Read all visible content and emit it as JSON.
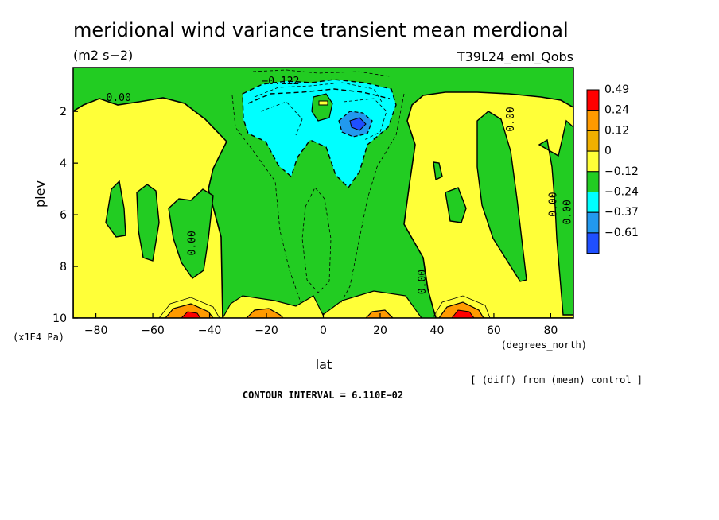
{
  "chart_data": {
    "type": "contour",
    "title": "meridional wind variance transient mean merdional",
    "units": "(m2 s−2)",
    "run_label": "T39L24_eml_Qobs",
    "xlabel": "lat",
    "xunits": "(degrees_north)",
    "ylabel": "plev",
    "yunits": "(x1E4 Pa)",
    "xlim": [
      -88,
      88
    ],
    "ylim": [
      10,
      0.3
    ],
    "x_ticks": [
      -80,
      -60,
      -40,
      -20,
      0,
      20,
      40,
      60,
      80
    ],
    "x_tick_labels": [
      "−80",
      "−60",
      "−40",
      "−20",
      "0",
      "20",
      "40",
      "60",
      "80"
    ],
    "y_ticks": [
      2,
      4,
      6,
      8,
      10
    ],
    "y_tick_labels": [
      "2",
      "4",
      "6",
      "8",
      "10"
    ],
    "colorbar": {
      "levels": [
        "0.49",
        "0.24",
        "0.12",
        "0",
        "−0.12",
        "−0.24",
        "−0.37",
        "−0.61"
      ],
      "colors": [
        "#ff0000",
        "#ff9a00",
        "#f0b000",
        "#ffff38",
        "#22cc22",
        "#00ffff",
        "#2299ee",
        "#1f4fff"
      ]
    },
    "contour_labels": [
      {
        "text": "0.00",
        "lat": -72,
        "plev": 1.6
      },
      {
        "text": "−0.122",
        "lat": -15,
        "plev": 0.95
      },
      {
        "text": "0.00",
        "lat": 67,
        "plev": 2.3
      },
      {
        "text": "0.00",
        "lat": 82,
        "plev": 5.6
      },
      {
        "text": "0.00",
        "lat": 87,
        "plev": 5.9
      },
      {
        "text": "0.00",
        "lat": -45,
        "plev": 7.1
      },
      {
        "text": "0.00",
        "lat": 36,
        "plev": 8.6
      }
    ],
    "footer_note": "[ (diff) from (mean) control ]",
    "contour_interval": "CONTOUR INTERVAL = 6.110E−02"
  }
}
